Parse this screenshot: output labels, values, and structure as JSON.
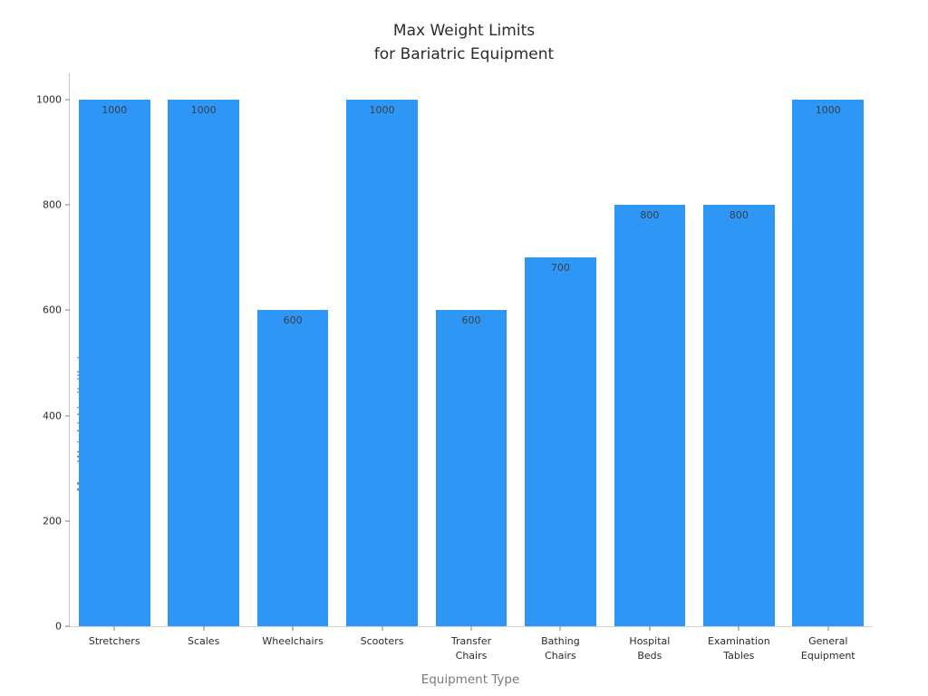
{
  "chart_data": {
    "type": "bar",
    "title": "Max Weight Limits\nfor Bariatric Equipment",
    "xlabel": "Equipment Type",
    "ylabel": "Max Weight Limit (lbs)",
    "categories": [
      "Stretchers",
      "Scales",
      "Wheelchairs",
      "Scooters",
      "Transfer Chairs",
      "Bathing Chairs",
      "Hospital Beds",
      "Examination Tables",
      "General Equipment"
    ],
    "values": [
      1000,
      1000,
      600,
      1000,
      600,
      700,
      800,
      800,
      1000
    ],
    "value_labels": [
      "1000",
      "1000",
      "600",
      "1000",
      "600",
      "700",
      "800",
      "800",
      "1000"
    ],
    "yticks": [
      0,
      200,
      400,
      600,
      800,
      1000
    ],
    "ylim": [
      0,
      1050
    ],
    "grid": false,
    "legend_position": "none",
    "bar_color": "#2e96f5",
    "value_label_color": "#3a4046",
    "background_color": "#ffffff"
  }
}
